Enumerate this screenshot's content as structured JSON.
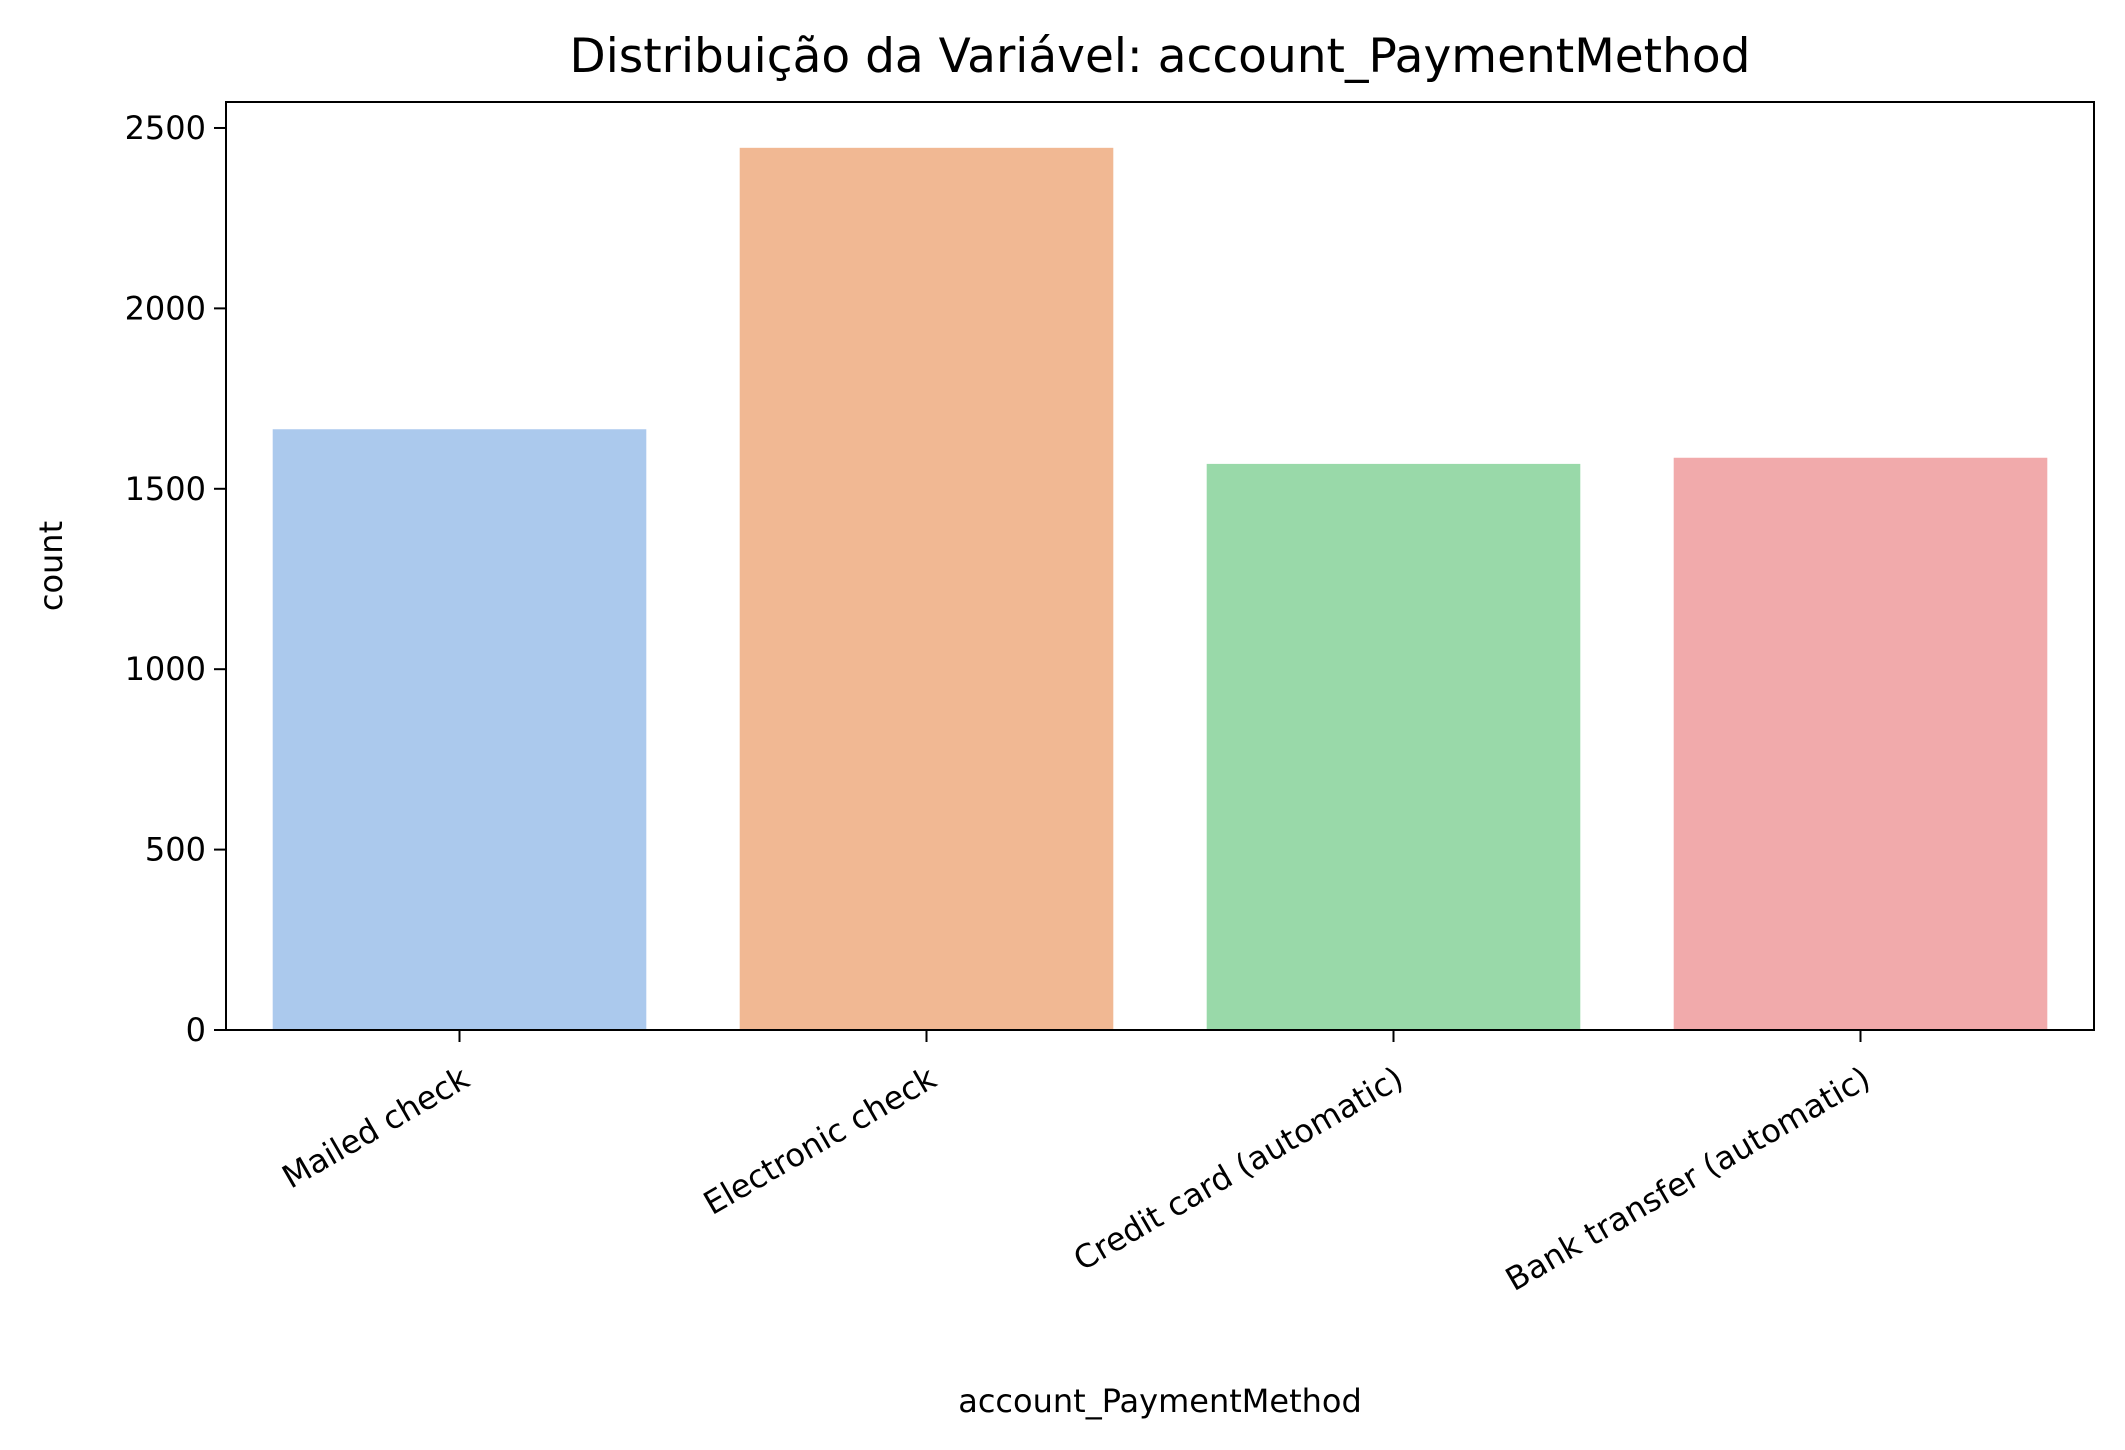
{
  "chart_data": {
    "type": "bar",
    "title": "Distribuição da Variável: account_PaymentMethod",
    "xlabel": "account_PaymentMethod",
    "ylabel": "count",
    "categories": [
      "Mailed check",
      "Electronic check",
      "Credit card (automatic)",
      "Bank transfer (automatic)"
    ],
    "values": [
      1665,
      2445,
      1569,
      1586
    ],
    "colors": [
      "#abc9ed",
      "#f1b893",
      "#99d9a9",
      "#f1aaab"
    ],
    "ylim": [
      0,
      2572
    ],
    "yticks": [
      0,
      500,
      1000,
      1500,
      2000,
      2500
    ],
    "grid": false,
    "legend": "none"
  }
}
